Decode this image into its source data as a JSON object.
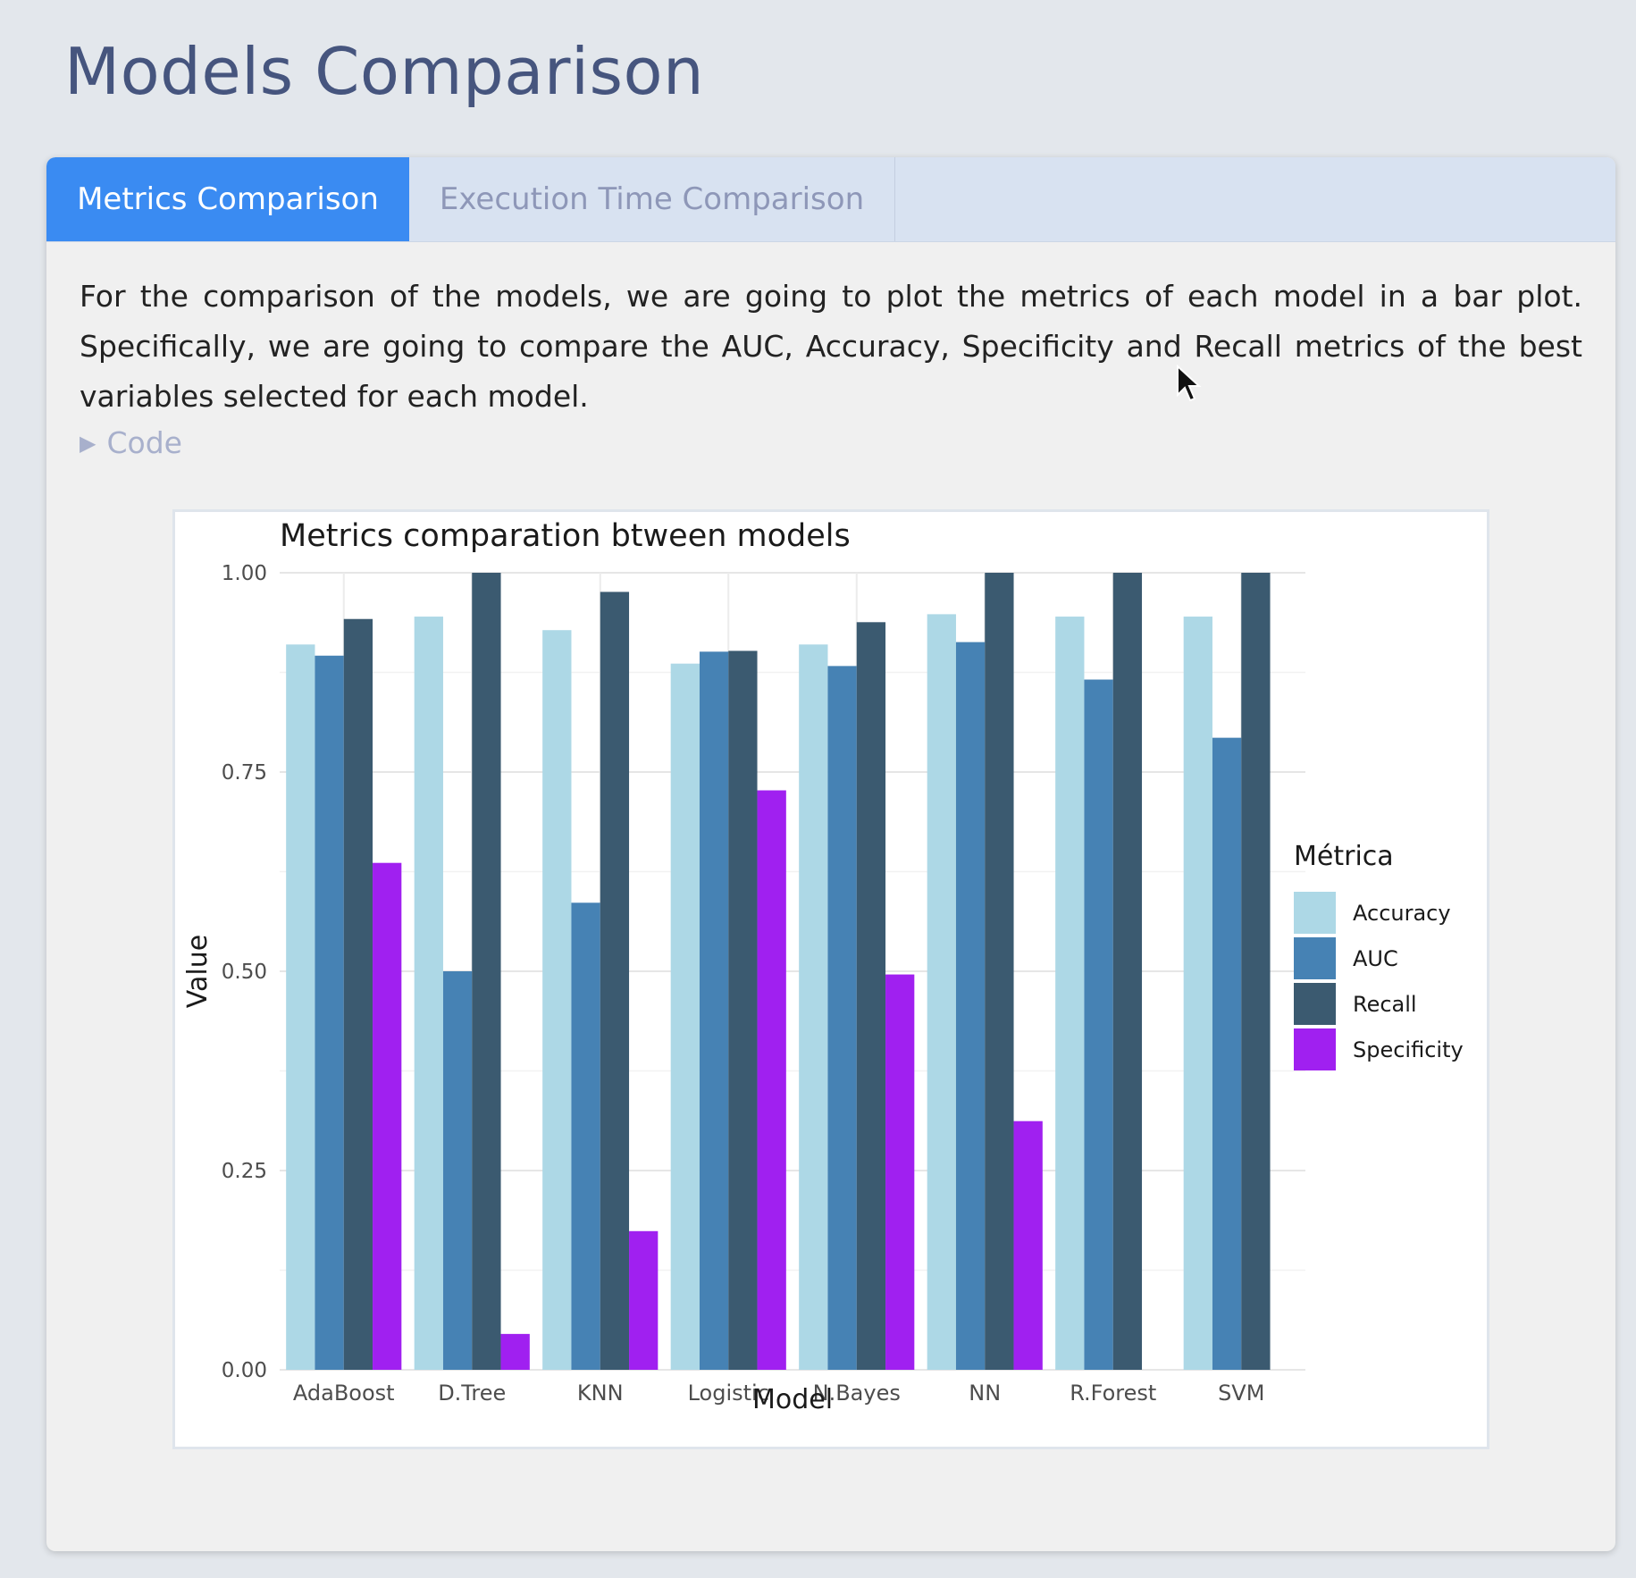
{
  "page": {
    "title": "Models Comparison"
  },
  "tabs": [
    {
      "label": "Metrics Comparison",
      "active": true
    },
    {
      "label": "Execution Time Comparison",
      "active": false
    }
  ],
  "intro_text": "For the comparison of the models, we are going to plot the metrics of each model in a bar plot. Specifically, we are going to compare the AUC, Accuracy, Specificity and Recall metrics of the best variables selected for each model.",
  "code_toggle": {
    "label": "Code",
    "icon": "triangle-right-icon"
  },
  "chart_data": {
    "type": "bar",
    "title": "Metrics comparation btween models",
    "xlabel": "Model",
    "ylabel": "Value",
    "ylim": [
      0,
      1
    ],
    "yticks": [
      "0.00",
      "0.25",
      "0.50",
      "0.75",
      "1.00"
    ],
    "grid": true,
    "legend": {
      "title": "Métrica",
      "position": "right"
    },
    "categories": [
      "AdaBoost",
      "D.Tree",
      "KNN",
      "Logistic",
      "N.Bayes",
      "NN",
      "R.Forest",
      "SVM"
    ],
    "series": [
      {
        "name": "Accuracy",
        "color": "#add8e6",
        "values": [
          0.91,
          0.945,
          0.928,
          0.886,
          0.91,
          0.948,
          0.945,
          0.945
        ]
      },
      {
        "name": "AUC",
        "color": "#4682b4",
        "values": [
          0.896,
          0.5,
          0.586,
          0.901,
          0.883,
          0.913,
          0.866,
          0.793
        ]
      },
      {
        "name": "Recall",
        "color": "#3b5a70",
        "values": [
          0.942,
          1.0,
          0.976,
          0.902,
          0.938,
          1.0,
          1.0,
          1.0
        ]
      },
      {
        "name": "Specificity",
        "color": "#a020f0",
        "values": [
          0.636,
          0.045,
          0.174,
          0.727,
          0.496,
          0.312,
          0.0,
          0.0
        ]
      }
    ]
  }
}
